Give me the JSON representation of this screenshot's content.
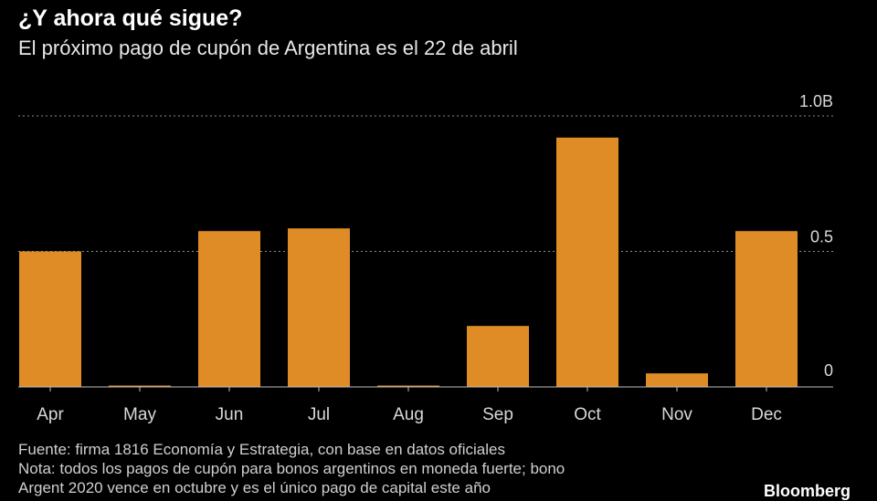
{
  "header": {
    "title": "¿Y ahora qué sigue?",
    "subtitle": "El próximo pago de cupón de Argentina es el 22 de abril"
  },
  "footer": {
    "source": "Fuente: firma 1816 Economía y Estrategia, con base en datos oficiales",
    "note_line1": "Nota: todos los pagos de cupón para bonos argentinos en moneda fuerte; bono",
    "note_line2": "Argent 2020 vence en octubre y es el único pago de capital este año",
    "logo": "Bloomberg"
  },
  "colors": {
    "background": "#000000",
    "bar": "#e08c26",
    "gridline": "#8a8a8a",
    "baseline": "#bfbfbf",
    "text": "#ffffff",
    "muted_text": "#cfcfcf"
  },
  "chart_data": {
    "type": "bar",
    "categories": [
      "Apr",
      "May",
      "Jun",
      "Jul",
      "Aug",
      "Sep",
      "Oct",
      "Nov",
      "Dec"
    ],
    "values": [
      0.5,
      0.005,
      0.575,
      0.585,
      0.005,
      0.225,
      0.92,
      0.05,
      0.575
    ],
    "ylim": [
      0,
      1.0
    ],
    "y_ticks": [
      0,
      0.5,
      1.0
    ],
    "y_tick_labels": [
      "0",
      "0.5",
      "1.0B"
    ],
    "y_axis_side": "right",
    "grid": true,
    "grid_style": "dotted"
  }
}
